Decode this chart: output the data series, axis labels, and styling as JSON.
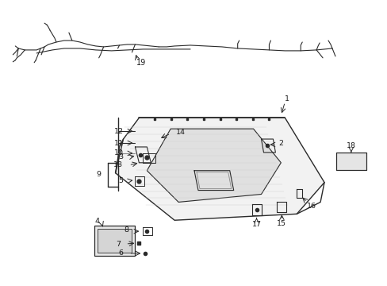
{
  "bg_color": "#ffffff",
  "line_color": "#2a2a2a",
  "text_color": "#1a1a1a",
  "fig_width": 4.89,
  "fig_height": 3.6,
  "dpi": 100,
  "wire_color": "#3a3a3a",
  "panel_fill": "#f2f2f2",
  "sunroof_fill": "#e0e0e0",
  "texture_color": "#d0d0d0"
}
